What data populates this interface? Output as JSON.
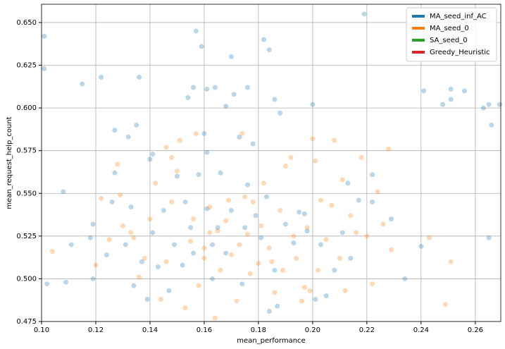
{
  "chart_data": {
    "type": "scatter",
    "x_label": "mean_performance",
    "y_label": "mean_request_help_count",
    "xlim": [
      0.1,
      0.2694
    ],
    "ylim": [
      0.475,
      0.6607
    ],
    "xticks": [
      {
        "value": 0.1,
        "label": "0.10"
      },
      0.12,
      0.14,
      0.16,
      0.18,
      {
        "value": 0.2,
        "label": "0.20"
      },
      0.22,
      0.24,
      0.26
    ],
    "yticks": [
      0.475,
      {
        "value": 0.5,
        "label": "0.500"
      },
      0.525,
      {
        "value": 0.55,
        "label": "0.550"
      },
      0.575,
      {
        "value": 0.6,
        "label": "0.600"
      },
      0.625,
      {
        "value": 0.65,
        "label": "0.650"
      }
    ],
    "grid": true,
    "legend": "upper right",
    "series": [
      {
        "name": "MA_seed_inf_AC",
        "color": "#1f77b4",
        "x": [
          0.101,
          0.101,
          0.102,
          0.108,
          0.109,
          0.111,
          0.115,
          0.118,
          0.119,
          0.119,
          0.122,
          0.127,
          0.127,
          0.132,
          0.135,
          0.136,
          0.14,
          0.141,
          0.154,
          0.156,
          0.157,
          0.159,
          0.161,
          0.164,
          0.168,
          0.17,
          0.171,
          0.176,
          0.182,
          0.184,
          0.186,
          0.188,
          0.2,
          0.219,
          0.241,
          0.248,
          0.251,
          0.251,
          0.256,
          0.263,
          0.265,
          0.266,
          0.269,
          0.265,
          0.24,
          0.234,
          0.222,
          0.222,
          0.213,
          0.214,
          0.211,
          0.205,
          0.201,
          0.197,
          0.193,
          0.19,
          0.186,
          0.183,
          0.181,
          0.178,
          0.176,
          0.173,
          0.17,
          0.168,
          0.165,
          0.163,
          0.161,
          0.16,
          0.158,
          0.155,
          0.153,
          0.15,
          0.149,
          0.147,
          0.145,
          0.143,
          0.141,
          0.139,
          0.137,
          0.134,
          0.133,
          0.131,
          0.126,
          0.124,
          0.184,
          0.187,
          0.174,
          0.163,
          0.156,
          0.152,
          0.161,
          0.166,
          0.175,
          0.179,
          0.195,
          0.198,
          0.203,
          0.208,
          0.229,
          0.217
        ],
        "values": [
          0.642,
          0.623,
          0.497,
          0.551,
          0.498,
          0.52,
          0.614,
          0.524,
          0.5,
          0.532,
          0.618,
          0.587,
          0.562,
          0.583,
          0.59,
          0.618,
          0.57,
          0.573,
          0.606,
          0.612,
          0.645,
          0.636,
          0.611,
          0.612,
          0.601,
          0.63,
          0.608,
          0.612,
          0.64,
          0.634,
          0.605,
          0.597,
          0.602,
          0.655,
          0.61,
          0.602,
          0.611,
          0.605,
          0.61,
          0.6,
          0.602,
          0.59,
          0.602,
          0.524,
          0.519,
          0.5,
          0.561,
          0.545,
          0.556,
          0.512,
          0.527,
          0.49,
          0.488,
          0.538,
          0.521,
          0.532,
          0.505,
          0.548,
          0.524,
          0.579,
          0.555,
          0.583,
          0.54,
          0.515,
          0.53,
          0.52,
          0.541,
          0.585,
          0.561,
          0.53,
          0.545,
          0.56,
          0.52,
          0.493,
          0.54,
          0.507,
          0.527,
          0.488,
          0.51,
          0.496,
          0.542,
          0.52,
          0.545,
          0.514,
          0.481,
          0.484,
          0.497,
          0.5,
          0.515,
          0.508,
          0.574,
          0.562,
          0.53,
          0.537,
          0.539,
          0.528,
          0.52,
          0.505,
          0.535,
          0.546
        ]
      },
      {
        "name": "MA_seed_0",
        "color": "#ff7f0e",
        "x": [
          0.104,
          0.12,
          0.122,
          0.128,
          0.13,
          0.133,
          0.138,
          0.14,
          0.142,
          0.144,
          0.146,
          0.148,
          0.15,
          0.151,
          0.153,
          0.155,
          0.157,
          0.158,
          0.16,
          0.162,
          0.164,
          0.166,
          0.168,
          0.17,
          0.172,
          0.174,
          0.176,
          0.178,
          0.18,
          0.182,
          0.184,
          0.186,
          0.188,
          0.19,
          0.192,
          0.194,
          0.196,
          0.198,
          0.2,
          0.201,
          0.203,
          0.205,
          0.207,
          0.208,
          0.21,
          0.212,
          0.214,
          0.216,
          0.218,
          0.22,
          0.222,
          0.224,
          0.226,
          0.228,
          0.229,
          0.243,
          0.249,
          0.251,
          0.146,
          0.148,
          0.156,
          0.16,
          0.165,
          0.169,
          0.173,
          0.177,
          0.181,
          0.185,
          0.189,
          0.193,
          0.197,
          0.199,
          0.136,
          0.134,
          0.129,
          0.125,
          0.202,
          0.211,
          0.162,
          0.175
        ],
        "values": [
          0.516,
          0.508,
          0.547,
          0.567,
          0.531,
          0.527,
          0.512,
          0.535,
          0.556,
          0.488,
          0.577,
          0.571,
          0.563,
          0.581,
          0.483,
          0.522,
          0.585,
          0.496,
          0.512,
          0.527,
          0.477,
          0.505,
          0.534,
          0.514,
          0.487,
          0.585,
          0.526,
          0.545,
          0.509,
          0.556,
          0.518,
          0.492,
          0.54,
          0.566,
          0.571,
          0.512,
          0.487,
          0.53,
          0.582,
          0.569,
          0.546,
          0.523,
          0.543,
          0.581,
          0.512,
          0.493,
          0.537,
          0.527,
          0.571,
          0.525,
          0.497,
          0.551,
          0.532,
          0.576,
          0.517,
          0.524,
          0.485,
          0.51,
          0.51,
          0.545,
          0.535,
          0.518,
          0.528,
          0.546,
          0.52,
          0.503,
          0.531,
          0.51,
          0.505,
          0.525,
          0.495,
          0.493,
          0.501,
          0.524,
          0.549,
          0.523,
          0.505,
          0.558,
          0.542,
          0.548
        ]
      },
      {
        "name": "SA_seed_0",
        "color": "#2ca02c",
        "x": [],
        "values": []
      },
      {
        "name": "Greedy_Heuristic",
        "color": "#d62728",
        "x": [],
        "values": []
      }
    ]
  }
}
